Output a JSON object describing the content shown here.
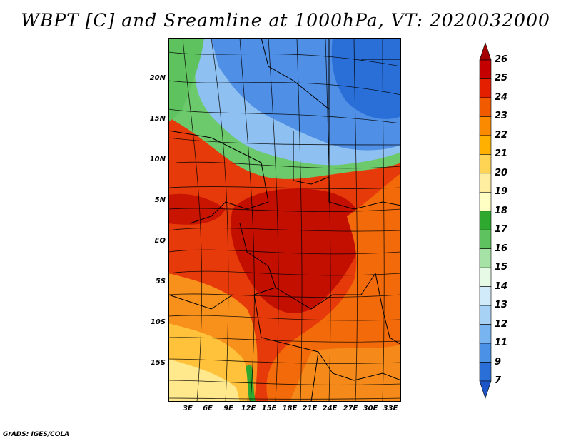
{
  "title": "WBPT [C] and Sreamline at 1000hPa, VT: 2020032000",
  "credit": "GrADS: IGES/COLA",
  "axes": {
    "lat_labels": [
      "20N",
      "15N",
      "10N",
      "5N",
      "EQ",
      "5S",
      "10S",
      "15S"
    ],
    "lon_labels": [
      "3E",
      "6E",
      "9E",
      "12E",
      "15E",
      "18E",
      "21E",
      "24E",
      "27E",
      "30E",
      "33E"
    ]
  },
  "colorbar": {
    "labels": [
      "26",
      "25",
      "24",
      "23",
      "22",
      "21",
      "20",
      "19",
      "18",
      "17",
      "16",
      "15",
      "14",
      "13",
      "12",
      "11",
      "9",
      "7"
    ],
    "colors": [
      "#a50000",
      "#c40000",
      "#e41f00",
      "#f25a00",
      "#fb8a00",
      "#ffb000",
      "#ffd455",
      "#ffeda0",
      "#ffffc4",
      "#2fa82f",
      "#5ec35e",
      "#a6e2a6",
      "#e6fae6",
      "#d2ebfa",
      "#a7d2f5",
      "#78b4f0",
      "#4b92e6",
      "#2a6fd8",
      "#1c55c8"
    ]
  },
  "regions": [
    {
      "name": "north-cool",
      "color": "#4f8fe6"
    },
    {
      "name": "north-light",
      "color": "#8ec0f2"
    },
    {
      "name": "green-belt",
      "color": "#6cc96c"
    },
    {
      "name": "warm-west",
      "color": "#e63a0a"
    },
    {
      "name": "hot-core",
      "color": "#c20f00"
    },
    {
      "name": "orange-east",
      "color": "#f36a0a"
    },
    {
      "name": "south-yellow",
      "color": "#ffe98c"
    }
  ]
}
